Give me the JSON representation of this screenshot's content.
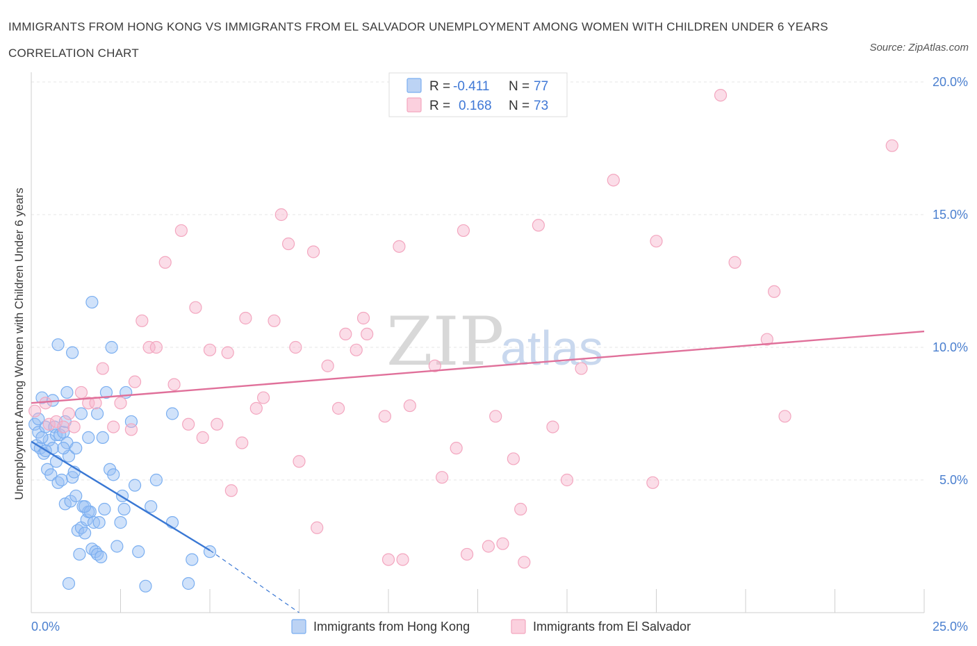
{
  "title": "IMMIGRANTS FROM HONG KONG VS IMMIGRANTS FROM EL SALVADOR UNEMPLOYMENT AMONG WOMEN WITH CHILDREN UNDER 6 YEARS CORRELATION CHART",
  "source": "Source: ZipAtlas.com",
  "watermark": {
    "zip": "ZIP",
    "atlas": "atlas"
  },
  "chart_data": {
    "type": "scatter",
    "ylabel": "Unemployment Among Women with Children Under 6 years",
    "xlim": [
      0,
      25
    ],
    "ylim": [
      0,
      20
    ],
    "x_tick_labels": [
      {
        "value": 0,
        "label": "0.0%"
      },
      {
        "value": 25,
        "label": "25.0%"
      }
    ],
    "y_tick_labels": [
      {
        "value": 5,
        "label": "5.0%"
      },
      {
        "value": 10,
        "label": "10.0%"
      },
      {
        "value": 15,
        "label": "15.0%"
      },
      {
        "value": 20,
        "label": "20.0%"
      }
    ],
    "grid": true,
    "legend_position": "top-center",
    "stats": [
      {
        "r_label": "R =",
        "r": "-0.411",
        "n_label": "N =",
        "n": "77"
      },
      {
        "r_label": "R =",
        "r": "0.168",
        "n_label": "N =",
        "n": "73"
      }
    ],
    "series": [
      {
        "name": "Immigrants from Hong Kong",
        "color": "#7aaef0",
        "line_color": "#3a78d4",
        "trend": {
          "x0": 0,
          "y0": 6.45,
          "x1": 5.0,
          "y1": 2.35,
          "dash_x1": 7.5,
          "dash_y1": 0.0
        },
        "points": [
          [
            0.1,
            7.1
          ],
          [
            0.15,
            6.3
          ],
          [
            0.2,
            6.8
          ],
          [
            0.25,
            6.2
          ],
          [
            0.3,
            8.1
          ],
          [
            0.35,
            6.0
          ],
          [
            0.4,
            7.0
          ],
          [
            0.45,
            5.4
          ],
          [
            0.5,
            6.5
          ],
          [
            0.55,
            5.2
          ],
          [
            0.6,
            6.2
          ],
          [
            0.65,
            7.0
          ],
          [
            0.7,
            6.7
          ],
          [
            0.75,
            4.9
          ],
          [
            0.8,
            6.7
          ],
          [
            0.85,
            5.0
          ],
          [
            0.9,
            6.8
          ],
          [
            0.95,
            4.1
          ],
          [
            1.0,
            6.4
          ],
          [
            1.05,
            5.9
          ],
          [
            1.1,
            4.2
          ],
          [
            1.15,
            5.1
          ],
          [
            1.2,
            5.3
          ],
          [
            1.25,
            4.4
          ],
          [
            1.3,
            3.1
          ],
          [
            1.35,
            2.2
          ],
          [
            1.4,
            3.2
          ],
          [
            1.45,
            4.0
          ],
          [
            1.5,
            3.0
          ],
          [
            1.55,
            3.5
          ],
          [
            1.6,
            3.8
          ],
          [
            1.65,
            3.8
          ],
          [
            1.7,
            2.4
          ],
          [
            1.75,
            3.4
          ],
          [
            1.8,
            2.3
          ],
          [
            1.85,
            2.2
          ],
          [
            1.9,
            3.4
          ],
          [
            1.95,
            2.1
          ],
          [
            2.05,
            3.9
          ],
          [
            2.2,
            5.4
          ],
          [
            2.3,
            5.2
          ],
          [
            2.4,
            2.5
          ],
          [
            2.5,
            3.4
          ],
          [
            2.6,
            3.9
          ],
          [
            2.9,
            4.8
          ],
          [
            3.0,
            2.3
          ],
          [
            3.2,
            1.0
          ],
          [
            3.35,
            4.0
          ],
          [
            3.5,
            5.0
          ],
          [
            3.95,
            3.4
          ],
          [
            4.4,
            1.1
          ],
          [
            4.5,
            2.0
          ],
          [
            5.0,
            2.3
          ],
          [
            1.7,
            11.7
          ],
          [
            0.75,
            10.1
          ],
          [
            1.15,
            9.8
          ],
          [
            2.25,
            10.0
          ],
          [
            1.0,
            8.3
          ],
          [
            2.1,
            8.3
          ],
          [
            2.65,
            8.3
          ],
          [
            0.6,
            8.0
          ],
          [
            1.4,
            7.5
          ],
          [
            1.85,
            7.5
          ],
          [
            2.8,
            7.2
          ],
          [
            3.95,
            7.5
          ],
          [
            1.25,
            6.2
          ],
          [
            0.4,
            6.1
          ],
          [
            0.2,
            7.3
          ],
          [
            0.95,
            7.2
          ],
          [
            1.05,
            1.1
          ],
          [
            1.5,
            4.0
          ],
          [
            2.0,
            6.6
          ],
          [
            0.3,
            6.6
          ],
          [
            0.7,
            5.7
          ],
          [
            0.9,
            6.2
          ],
          [
            1.6,
            6.6
          ],
          [
            2.55,
            4.4
          ]
        ]
      },
      {
        "name": "Immigrants from El Salvador",
        "color": "#f3a6bf",
        "line_color": "#e0709a",
        "trend": {
          "x0": 0,
          "y0": 7.9,
          "x1": 25.0,
          "y1": 10.6
        },
        "points": [
          [
            0.1,
            7.6
          ],
          [
            0.4,
            7.9
          ],
          [
            0.5,
            7.1
          ],
          [
            0.7,
            7.2
          ],
          [
            0.9,
            7.0
          ],
          [
            1.05,
            7.5
          ],
          [
            1.2,
            7.0
          ],
          [
            1.4,
            8.3
          ],
          [
            1.6,
            7.9
          ],
          [
            1.8,
            7.9
          ],
          [
            2.0,
            9.2
          ],
          [
            2.3,
            7.0
          ],
          [
            2.5,
            7.9
          ],
          [
            2.8,
            6.9
          ],
          [
            2.9,
            8.7
          ],
          [
            3.1,
            11.0
          ],
          [
            3.3,
            10.0
          ],
          [
            3.5,
            10.0
          ],
          [
            3.75,
            13.2
          ],
          [
            4.0,
            8.6
          ],
          [
            4.2,
            14.4
          ],
          [
            4.4,
            7.1
          ],
          [
            4.6,
            11.5
          ],
          [
            4.8,
            6.6
          ],
          [
            5.0,
            9.9
          ],
          [
            5.2,
            7.1
          ],
          [
            5.5,
            9.8
          ],
          [
            5.6,
            4.6
          ],
          [
            5.9,
            6.4
          ],
          [
            6.0,
            11.1
          ],
          [
            6.3,
            7.7
          ],
          [
            6.5,
            8.1
          ],
          [
            6.8,
            11.0
          ],
          [
            7.0,
            15.0
          ],
          [
            7.2,
            13.9
          ],
          [
            7.4,
            10.0
          ],
          [
            7.5,
            5.7
          ],
          [
            7.9,
            13.6
          ],
          [
            8.0,
            3.2
          ],
          [
            8.3,
            9.3
          ],
          [
            8.6,
            7.7
          ],
          [
            8.8,
            10.5
          ],
          [
            9.1,
            9.9
          ],
          [
            9.3,
            11.1
          ],
          [
            9.4,
            10.5
          ],
          [
            9.9,
            7.4
          ],
          [
            10.0,
            2.0
          ],
          [
            10.3,
            13.8
          ],
          [
            10.4,
            2.0
          ],
          [
            10.6,
            7.8
          ],
          [
            11.3,
            9.3
          ],
          [
            11.5,
            5.1
          ],
          [
            11.9,
            6.2
          ],
          [
            12.1,
            14.4
          ],
          [
            12.2,
            2.2
          ],
          [
            12.8,
            2.5
          ],
          [
            13.0,
            7.4
          ],
          [
            13.2,
            2.6
          ],
          [
            13.5,
            5.8
          ],
          [
            13.7,
            3.9
          ],
          [
            13.8,
            1.9
          ],
          [
            14.2,
            14.6
          ],
          [
            14.6,
            7.0
          ],
          [
            15.0,
            5.0
          ],
          [
            15.4,
            9.2
          ],
          [
            16.3,
            16.3
          ],
          [
            17.4,
            4.9
          ],
          [
            17.5,
            14.0
          ],
          [
            19.3,
            19.5
          ],
          [
            19.7,
            13.2
          ],
          [
            20.6,
            10.3
          ],
          [
            20.8,
            12.1
          ],
          [
            21.1,
            7.4
          ]
        ]
      }
    ],
    "extra_points_el_salvador": [
      [
        24.1,
        17.6
      ]
    ]
  }
}
